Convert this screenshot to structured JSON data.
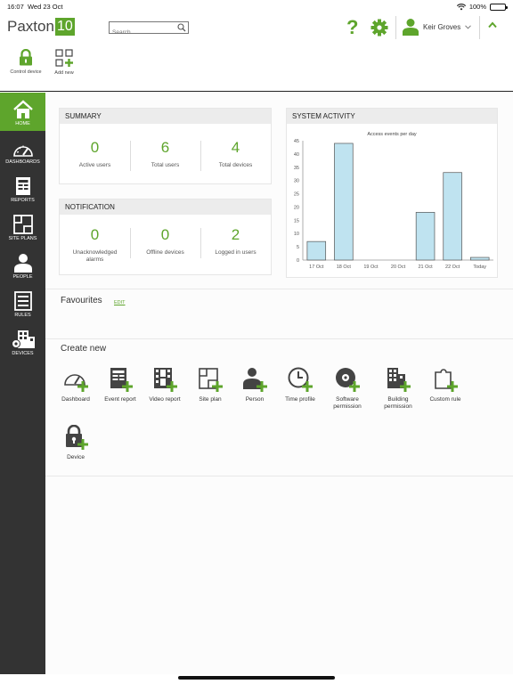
{
  "status_bar": {
    "time": "16:07",
    "date": "Wed 23 Oct",
    "battery": "100%"
  },
  "header": {
    "logo_text": "Paxton",
    "logo_badge": "10",
    "search_placeholder": "Search",
    "help_label": "?",
    "user_name": "Keir Groves"
  },
  "toolbar": {
    "control_device": "Control device",
    "add_new": "Add new"
  },
  "sidebar": {
    "items": [
      {
        "label": "HOME",
        "icon": "home-icon",
        "active": true
      },
      {
        "label": "DASHBOARDS",
        "icon": "gauge-icon"
      },
      {
        "label": "REPORTS",
        "icon": "report-icon"
      },
      {
        "label": "SITE PLANS",
        "icon": "floorplan-icon"
      },
      {
        "label": "PEOPLE",
        "icon": "person-icon"
      },
      {
        "label": "RULES",
        "icon": "rules-icon"
      },
      {
        "label": "DEVICES",
        "icon": "devices-icon"
      }
    ]
  },
  "summary": {
    "title": "SUMMARY",
    "stats": [
      {
        "value": "0",
        "label": "Active users"
      },
      {
        "value": "6",
        "label": "Total users"
      },
      {
        "value": "4",
        "label": "Total devices"
      }
    ]
  },
  "notification": {
    "title": "NOTIFICATION",
    "stats": [
      {
        "value": "0",
        "label": "Unacknowledged alarms"
      },
      {
        "value": "0",
        "label": "Offline devices"
      },
      {
        "value": "2",
        "label": "Logged in users"
      }
    ]
  },
  "system_activity": {
    "title": "SYSTEM ACTIVITY"
  },
  "chart_data": {
    "type": "bar",
    "title": "Access events per day",
    "categories": [
      "17 Oct",
      "18 Oct",
      "19 Oct",
      "20 Oct",
      "21 Oct",
      "22 Oct",
      "Today"
    ],
    "values": [
      7,
      44,
      0,
      0,
      18,
      33,
      1
    ],
    "ylim": [
      0,
      45
    ],
    "yticks": [
      0,
      5,
      10,
      15,
      20,
      25,
      30,
      35,
      40,
      45
    ],
    "grid": false,
    "bar_color": "#bfe3f0",
    "bar_edge_color": "#555555"
  },
  "favourites": {
    "title": "Favourites",
    "edit_label": "EDIT"
  },
  "create_new": {
    "title": "Create new",
    "items": [
      {
        "label": "Dashboard",
        "icon": "dashboard-add-icon"
      },
      {
        "label": "Event report",
        "icon": "event-report-add-icon"
      },
      {
        "label": "Video report",
        "icon": "video-report-add-icon"
      },
      {
        "label": "Site plan",
        "icon": "site-plan-add-icon"
      },
      {
        "label": "Person",
        "icon": "person-add-icon"
      },
      {
        "label": "Time profile",
        "icon": "time-profile-add-icon"
      },
      {
        "label": "Software permission",
        "icon": "software-permission-add-icon"
      },
      {
        "label": "Building permission",
        "icon": "building-permission-add-icon"
      },
      {
        "label": "Custom rule",
        "icon": "custom-rule-add-icon"
      },
      {
        "label": "Device",
        "icon": "device-add-icon"
      }
    ]
  },
  "colors": {
    "accent": "#5ea52c",
    "sidebar": "#333333",
    "panel_header": "#ececec"
  }
}
